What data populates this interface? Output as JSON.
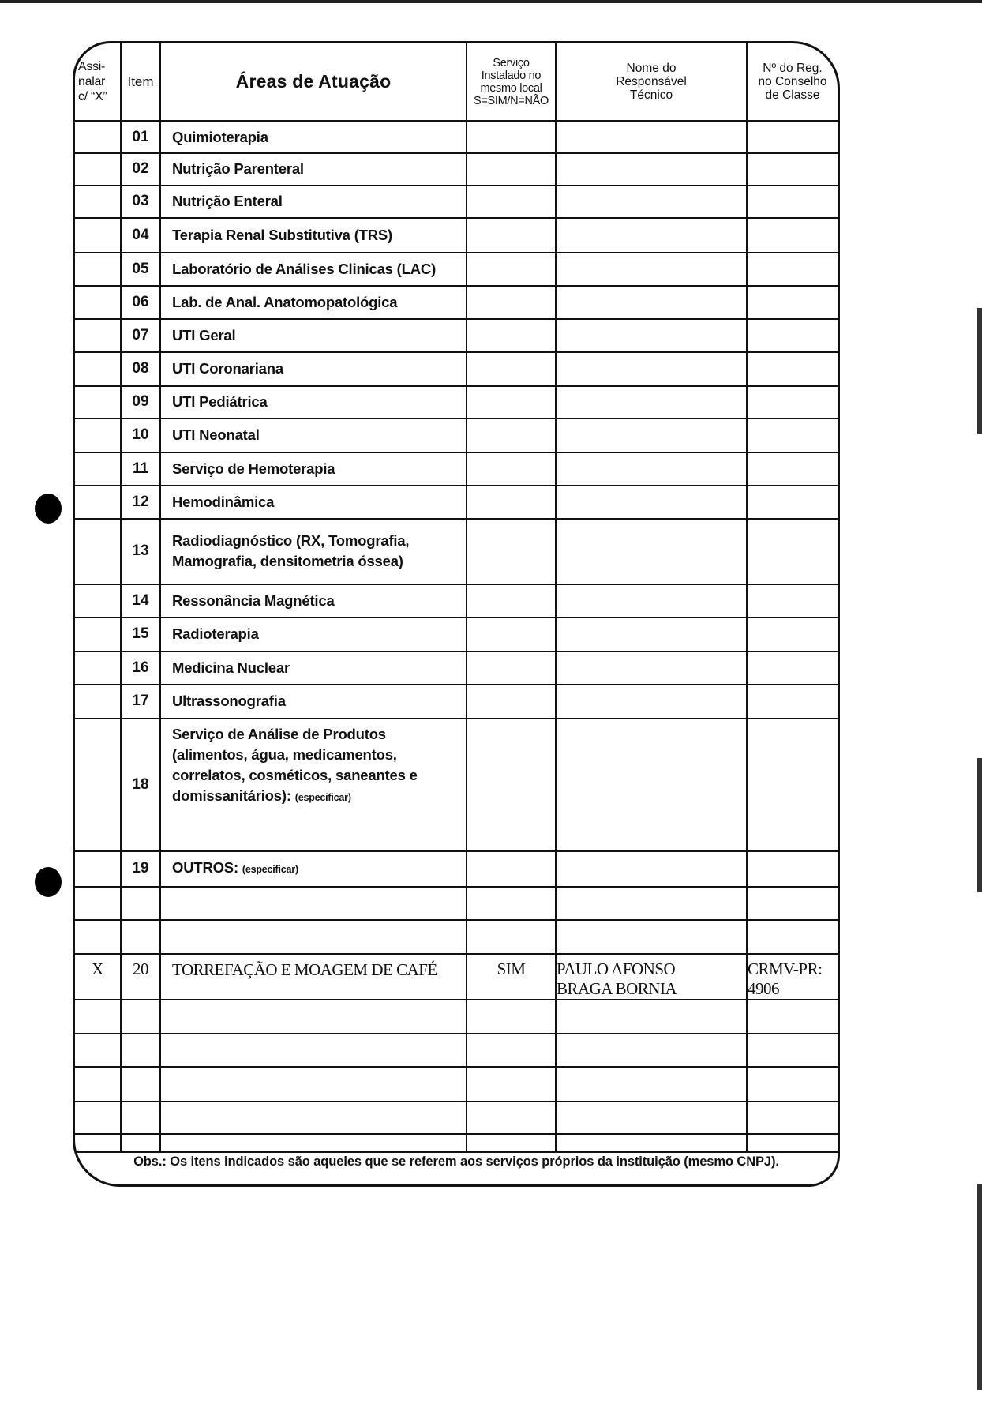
{
  "header": {
    "mark": "Assi-\nnalar\nc/ “X”",
    "item": "Item",
    "areas": "Áreas de Atuação",
    "service": "Serviço\nInstalado no\nmesmo local\nS=SIM/N=NÃO",
    "responsible": "Nome do\nResponsável\nTécnico",
    "registry": "Nº do Reg.\nno Conselho\nde Classe"
  },
  "rows": [
    {
      "item": "01",
      "area": "Quimioterapia"
    },
    {
      "item": "02",
      "area": "Nutrição Parenteral"
    },
    {
      "item": "03",
      "area": "Nutrição Enteral"
    },
    {
      "item": "04",
      "area": "Terapia Renal Substitutiva (TRS)"
    },
    {
      "item": "05",
      "area": "Laboratório de Análises Clinicas (LAC)"
    },
    {
      "item": "06",
      "area": "Lab. de Anal. Anatomopatológica"
    },
    {
      "item": "07",
      "area": "UTI Geral"
    },
    {
      "item": "08",
      "area": "UTI Coronariana"
    },
    {
      "item": "09",
      "area": "UTI Pediátrica"
    },
    {
      "item": "10",
      "area": "UTI Neonatal"
    },
    {
      "item": "11",
      "area": "Serviço de Hemoterapia"
    },
    {
      "item": "12",
      "area": "Hemodinâmica"
    },
    {
      "item": "13",
      "area": "Radiodiagnóstico (RX, Tomografia,\nMamografia, densitometria óssea)"
    },
    {
      "item": "14",
      "area": "Ressonância Magnética"
    },
    {
      "item": "15",
      "area": "Radioterapia"
    },
    {
      "item": "16",
      "area": "Medicina Nuclear"
    },
    {
      "item": "17",
      "area": "Ultrassonografia"
    },
    {
      "item": "18",
      "area": "Serviço de Análise de Produtos\n(alimentos, água, medicamentos,\ncorrelatos, cosméticos, saneantes e\ndomissanitários):",
      "note": "(especificar)"
    },
    {
      "item": "19",
      "area": "OUTROS:",
      "note": "(especificar)"
    },
    {},
    {},
    {
      "mark": "X",
      "item": "20",
      "area": "TORREFAÇÃO E MOAGEM DE CAFÉ",
      "service": "SIM",
      "responsible": "PAULO AFONSO\nBRAGA BORNIA",
      "registry": "CRMV-PR:\n4906",
      "typed": true
    },
    {},
    {},
    {},
    {},
    {}
  ],
  "obs": "Obs.: Os itens indicados são aqueles que se referem aos serviços próprios da instituição (mesmo CNPJ)."
}
